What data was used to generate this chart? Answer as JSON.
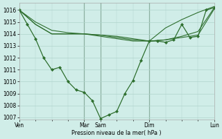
{
  "bg_color": "#d0ede8",
  "grid_color": "#b0d4cc",
  "line_color": "#2d6e2d",
  "xlabel": "Pression niveau de la mer( hPa )",
  "ylim": [
    1006.8,
    1016.6
  ],
  "xlim": [
    0,
    288
  ],
  "xtick_positions": [
    0,
    96,
    120,
    192,
    288
  ],
  "xtick_labels": [
    "Ven",
    "Mar",
    "Sam",
    "Dim",
    "Lun"
  ],
  "minor_xtick_positions": [
    24,
    48,
    72,
    144,
    168,
    216,
    240,
    264
  ],
  "vline_positions": [
    96,
    120,
    192
  ],
  "series1_x": [
    0,
    24,
    48,
    72,
    96,
    120,
    144,
    168,
    192,
    216,
    240,
    264,
    288
  ],
  "series1_y": [
    1016.0,
    1014.8,
    1014.0,
    1014.0,
    1014.0,
    1013.9,
    1013.8,
    1013.6,
    1013.4,
    1013.5,
    1013.7,
    1013.9,
    1016.1
  ],
  "series2_x": [
    0,
    24,
    48,
    72,
    96,
    120,
    144,
    168,
    192,
    216,
    240,
    264,
    288
  ],
  "series2_y": [
    1016.0,
    1014.8,
    1014.0,
    1014.0,
    1014.0,
    1013.8,
    1013.6,
    1013.4,
    1013.4,
    1013.5,
    1013.8,
    1014.2,
    1016.2
  ],
  "series3_x": [
    0,
    24,
    48,
    72,
    96,
    120,
    144,
    168,
    192,
    216,
    240,
    264,
    288
  ],
  "series3_y": [
    1016.0,
    1015.0,
    1014.3,
    1014.1,
    1014.0,
    1013.9,
    1013.7,
    1013.5,
    1013.4,
    1014.5,
    1015.2,
    1015.8,
    1016.3
  ],
  "series_main_x": [
    0,
    12,
    24,
    36,
    48,
    60,
    72,
    84,
    96,
    108,
    120,
    132,
    144,
    156,
    168,
    180,
    192,
    204,
    216,
    228,
    240,
    252,
    264,
    276,
    288
  ],
  "series_main_y": [
    1016.0,
    1014.8,
    1013.6,
    1012.0,
    1011.0,
    1011.2,
    1010.0,
    1009.3,
    1009.1,
    1008.4,
    1006.9,
    1007.2,
    1007.5,
    1009.0,
    1010.1,
    1011.8,
    1013.4,
    1013.4,
    1013.3,
    1013.5,
    1014.8,
    1013.7,
    1013.8,
    1016.0,
    1016.2
  ]
}
